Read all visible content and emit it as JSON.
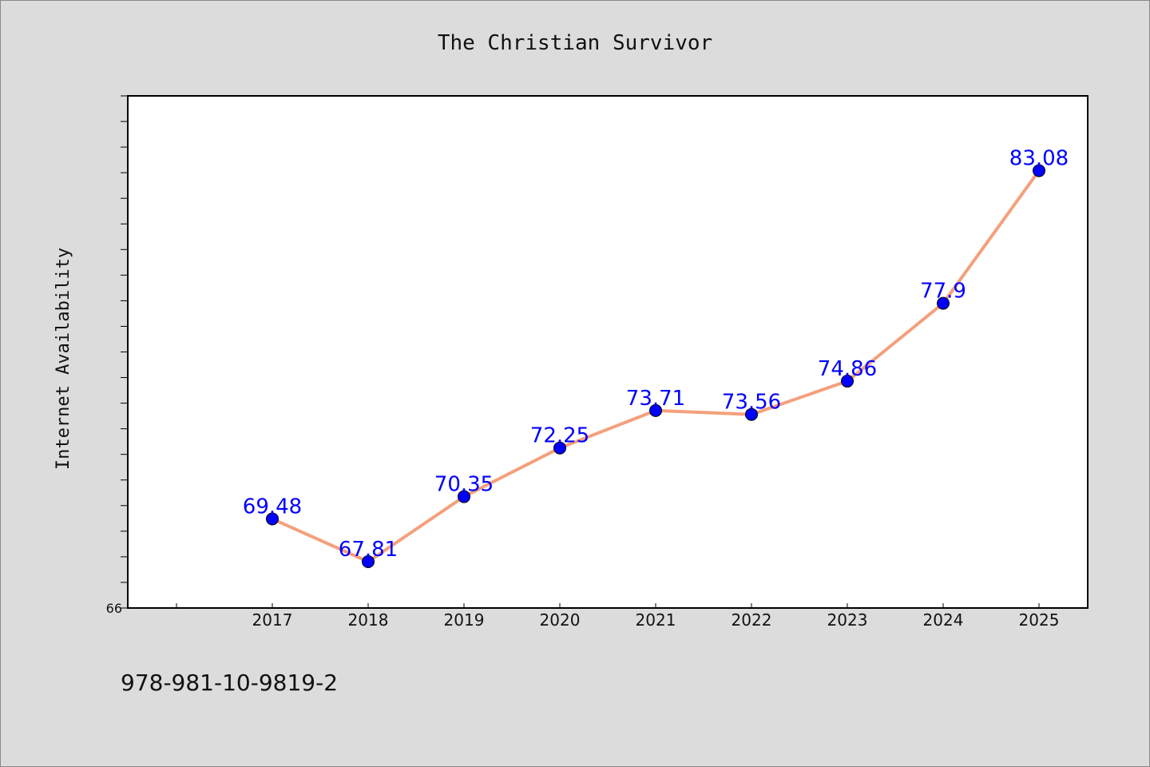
{
  "chart_data": {
    "type": "line",
    "title": "The Christian Survivor",
    "xlabel": "",
    "ylabel": "Internet Availability",
    "categories": [
      "2017",
      "2018",
      "2019",
      "2020",
      "2021",
      "2022",
      "2023",
      "2024",
      "2025"
    ],
    "series": [
      {
        "values": [
          69.48,
          67.81,
          70.35,
          72.25,
          73.71,
          73.56,
          74.86,
          77.9,
          83.08
        ],
        "labels": [
          "69.48",
          "67.81",
          "70.35",
          "72.25",
          "73.71",
          "73.56",
          "74.86",
          "77.9",
          "83.08"
        ]
      }
    ],
    "ylim": [
      66,
      86
    ],
    "y_tick_labels": [
      "66"
    ],
    "y_minor_tick_step": 1,
    "grid": false,
    "line_color": "#f4a07c",
    "marker_color": "#0000ff",
    "label_color": "#0000ff"
  },
  "footer": {
    "code": "978-981-10-9819-2"
  }
}
